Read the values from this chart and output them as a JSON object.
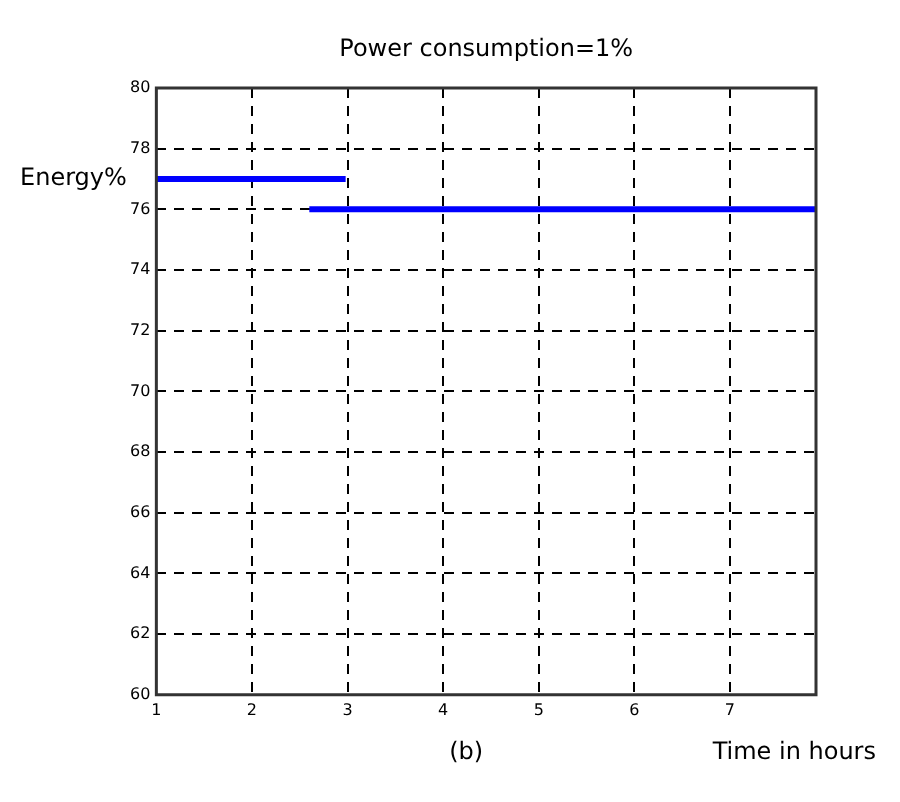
{
  "chart_data": {
    "type": "line",
    "title": "Power consumption=1%",
    "xlabel": "Time in hours",
    "ylabel": "Energy%",
    "annotations": [
      "(b)"
    ],
    "series": [
      {
        "color": "#0000ff",
        "x": [
          1,
          2.98
        ],
        "values": [
          77,
          77
        ]
      },
      {
        "color": "#0000ff",
        "x": [
          2.6,
          7.9
        ],
        "values": [
          76,
          76
        ]
      }
    ],
    "xlim": [
      1,
      7.9
    ],
    "xticks": [
      1,
      2,
      3,
      4,
      5,
      6,
      7
    ],
    "ylim": [
      60,
      80
    ],
    "yticks": [
      60,
      62,
      64,
      66,
      68,
      70,
      72,
      74,
      76,
      78,
      80
    ],
    "grid": true,
    "legend": false,
    "marker": "none",
    "line_style": "solid"
  }
}
